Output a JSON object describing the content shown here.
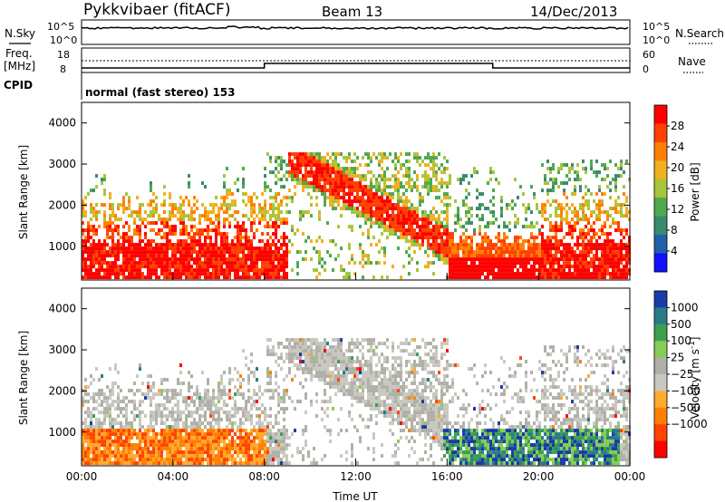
{
  "header": {
    "radar": "Pykkvibaer (fitACF)",
    "beam": "Beam 13",
    "date": "14/Dec/2013"
  },
  "top_panels": {
    "noise": {
      "left_label": "N.Sky",
      "right_label": "N.Search",
      "left_ticks": [
        "10^5",
        "10^0"
      ],
      "right_ticks": [
        "10^5",
        "10^0"
      ]
    },
    "freq": {
      "left_label_1": "Freq.",
      "left_label_2": "[MHz]",
      "right_label": "Nave",
      "left_ticks": [
        "18",
        "8"
      ],
      "right_ticks": [
        "60",
        "0"
      ]
    },
    "cpid": {
      "label": "CPID",
      "text": "normal (fast stereo) 153"
    }
  },
  "colors": {
    "power_scale": [
      "#1010ff",
      "#1f5fa8",
      "#3a8a6e",
      "#4ea84e",
      "#a8c43a",
      "#f0b020",
      "#ff8000",
      "#ff4000",
      "#ff0000"
    ],
    "velocity_scale": [
      "#ff0000",
      "#ff4400",
      "#ff8000",
      "#ffaa30",
      "#c8c8c0",
      "#b0b0a8",
      "#88cc55",
      "#3aa050",
      "#2a7a8a",
      "#1a3aa8"
    ]
  },
  "chart_data": [
    {
      "type": "heatmap",
      "name": "power",
      "xlabel": "",
      "ylabel": "Slant Range [km]",
      "x_ticks": [
        "00:00",
        "04:00",
        "08:00",
        "12:00",
        "16:00",
        "20:00",
        "00:00"
      ],
      "y_ticks": [
        1000,
        2000,
        3000,
        4000
      ],
      "ylim": [
        180,
        4500
      ],
      "colorbar": {
        "label": "Power [dB]",
        "ticks": [
          4,
          8,
          12,
          16,
          20,
          24,
          28
        ]
      }
    },
    {
      "type": "heatmap",
      "name": "velocity",
      "xlabel": "Time UT",
      "ylabel": "Slant Range [km]",
      "x_ticks": [
        "00:00",
        "04:00",
        "08:00",
        "12:00",
        "16:00",
        "20:00",
        "00:00"
      ],
      "y_ticks": [
        1000,
        2000,
        3000,
        4000
      ],
      "ylim": [
        180,
        4500
      ],
      "colorbar": {
        "label": "Velocity [m s^-1]",
        "ticks": [
          1000,
          500,
          100,
          25,
          -25,
          -100,
          -500,
          -1000
        ]
      }
    }
  ]
}
